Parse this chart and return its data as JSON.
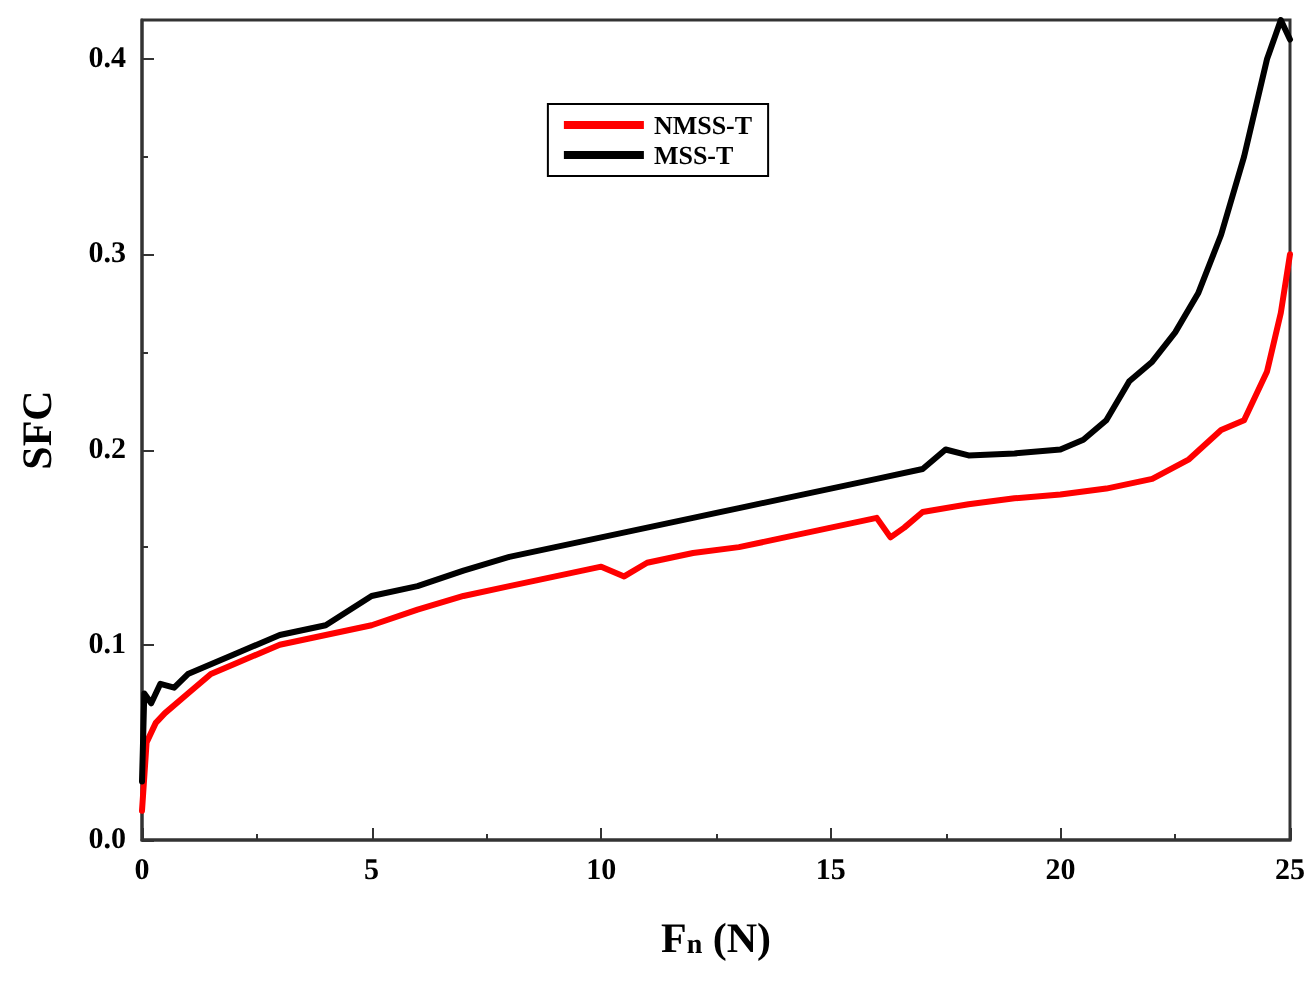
{
  "chart_data": {
    "type": "line",
    "xlabel": "F$_{n}$ (N)",
    "ylabel": "SFC",
    "xlim": [
      0,
      25
    ],
    "xticks": [
      0,
      5,
      10,
      15,
      20,
      25
    ],
    "ylim": [
      0,
      0.42
    ],
    "yticks": [
      {
        "value": 0,
        "label": "0.0"
      },
      0.1,
      0.2,
      0.3,
      0.4
    ],
    "legend": "top",
    "grid": false,
    "marker": "none",
    "line_style": "solid",
    "series": [
      {
        "name": "NMSS-T",
        "color": "#ff0000",
        "x": [
          0,
          0.1,
          0.3,
          0.5,
          1,
          1.5,
          2,
          3,
          4,
          5,
          6,
          7,
          8,
          9,
          10,
          10.5,
          11,
          12,
          13,
          14,
          15,
          16,
          16.3,
          16.6,
          17,
          18,
          19,
          20,
          21,
          22,
          22.8,
          23.5,
          24,
          24.5,
          24.8,
          25
        ],
        "values": [
          0.015,
          0.05,
          0.06,
          0.065,
          0.075,
          0.085,
          0.09,
          0.1,
          0.105,
          0.11,
          0.118,
          0.125,
          0.13,
          0.135,
          0.14,
          0.135,
          0.142,
          0.147,
          0.15,
          0.155,
          0.16,
          0.165,
          0.155,
          0.16,
          0.168,
          0.172,
          0.175,
          0.177,
          0.18,
          0.185,
          0.195,
          0.21,
          0.215,
          0.24,
          0.27,
          0.3
        ]
      },
      {
        "name": "MSS-T",
        "color": "#000000",
        "x": [
          0,
          0.05,
          0.2,
          0.4,
          0.7,
          1,
          2,
          3,
          4,
          5,
          6,
          7,
          8,
          9,
          10,
          11,
          12,
          13,
          14,
          15,
          16,
          17,
          17.5,
          18,
          19,
          20,
          20.5,
          21,
          21.5,
          22,
          22.5,
          23,
          23.5,
          24,
          24.5,
          24.8,
          25
        ],
        "values": [
          0.03,
          0.075,
          0.07,
          0.08,
          0.078,
          0.085,
          0.095,
          0.105,
          0.11,
          0.125,
          0.13,
          0.138,
          0.145,
          0.15,
          0.155,
          0.16,
          0.165,
          0.17,
          0.175,
          0.18,
          0.185,
          0.19,
          0.2,
          0.197,
          0.198,
          0.2,
          0.205,
          0.215,
          0.235,
          0.245,
          0.26,
          0.28,
          0.31,
          0.35,
          0.4,
          0.42,
          0.41
        ]
      }
    ]
  }
}
